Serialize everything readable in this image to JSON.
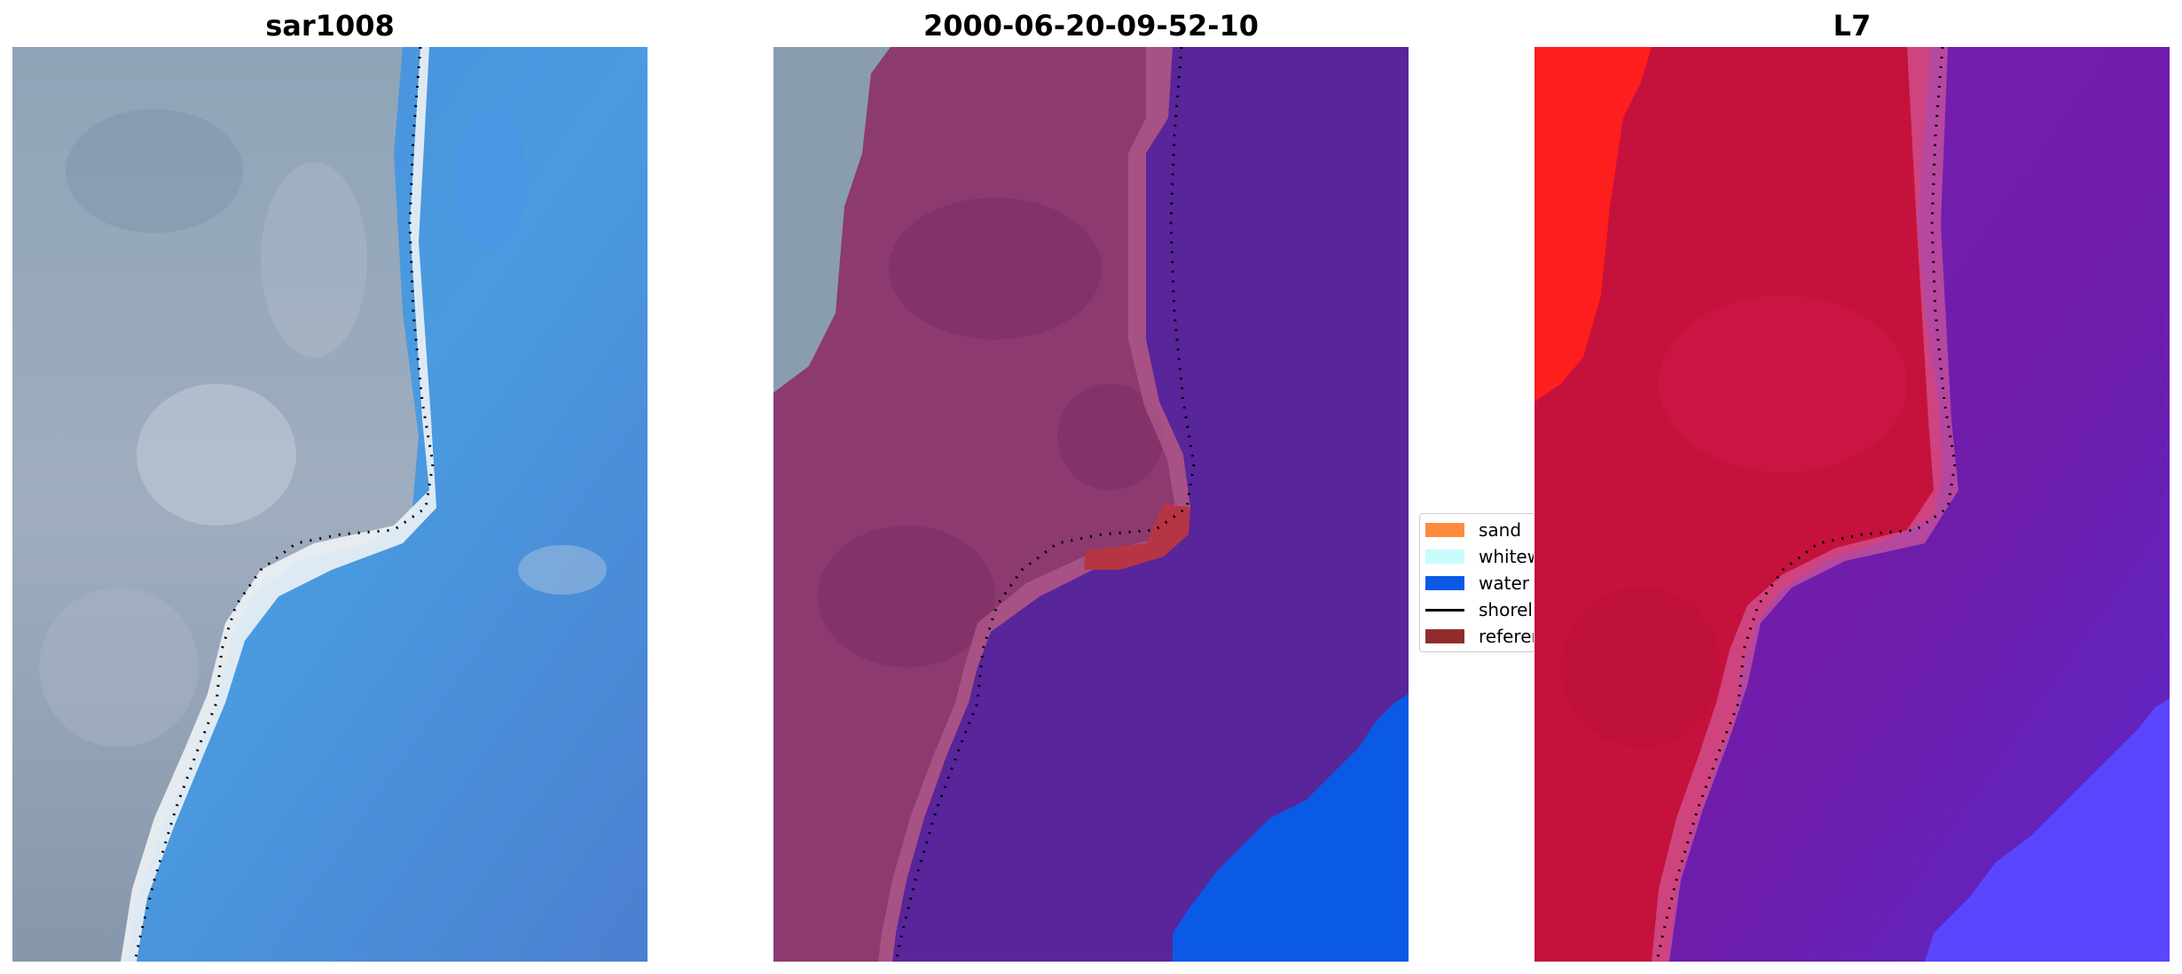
{
  "panels": [
    {
      "title": "sar1008"
    },
    {
      "title": "2000-06-20-09-52-10"
    },
    {
      "title": "L7"
    }
  ],
  "legend": {
    "items": [
      {
        "label": "sand",
        "color": "#ff8c3c",
        "kind": "patch"
      },
      {
        "label": "whitewater",
        "color": "#c8fcfc",
        "kind": "patch"
      },
      {
        "label": "water",
        "color": "#0a5ae6",
        "kind": "patch"
      },
      {
        "label": "shoreline",
        "color": "#000000",
        "kind": "line"
      },
      {
        "label": "reference",
        "color": "#902c2c",
        "kind": "patch"
      }
    ]
  },
  "colors": {
    "rgb_land": "#8b9aa8",
    "rgb_water": "#4a8fd8",
    "rgb_beach": "#e6eef2",
    "classified_land": "#8c3a70",
    "classified_water": "#58259a",
    "classified_water_bright": "#0a5ae6",
    "classified_reference": "#b53545",
    "l7_land": "#c4123c",
    "l7_land_bright": "#ff1e1e",
    "l7_water": "#7a1eaa",
    "l7_water_bright": "#5a46ff"
  }
}
